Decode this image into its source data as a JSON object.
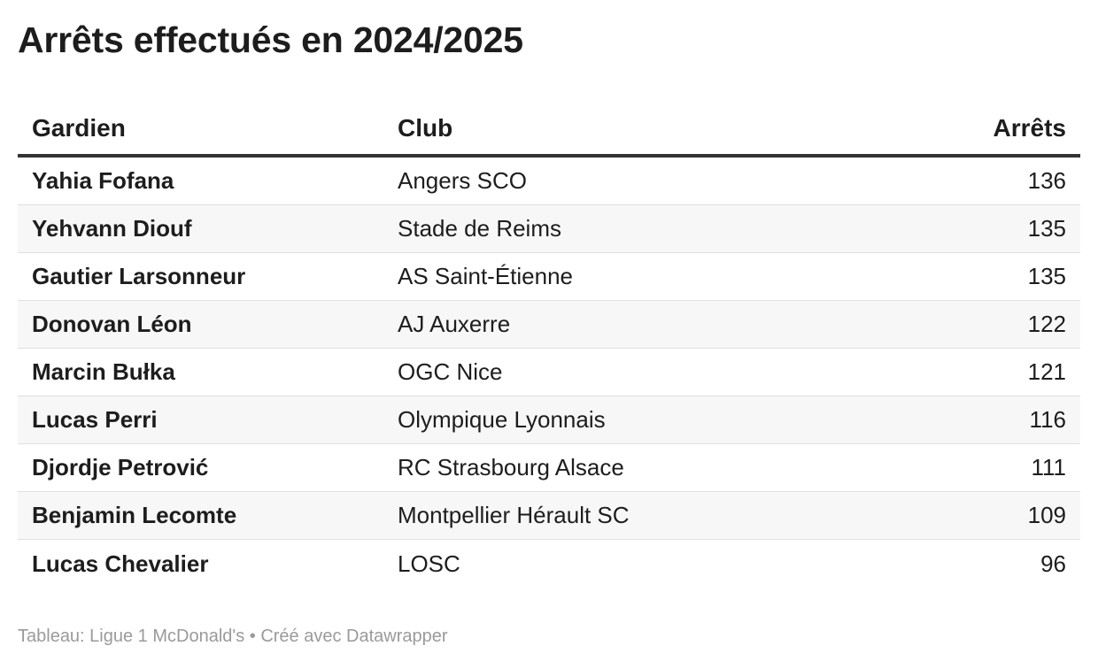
{
  "title": "Arrêts effectués en 2024/2025",
  "footer": "Tableau: Ligue 1 McDonald's • Créé avec Datawrapper",
  "chart_data": {
    "type": "table",
    "title": "Arrêts effectués en 2024/2025",
    "columns": [
      "Gardien",
      "Club",
      "Arrêts"
    ],
    "rows": [
      {
        "gardien": "Yahia Fofana",
        "club": "Angers SCO",
        "arrets": "136"
      },
      {
        "gardien": "Yehvann Diouf",
        "club": "Stade de Reims",
        "arrets": "135"
      },
      {
        "gardien": "Gautier Larsonneur",
        "club": "AS Saint-Étienne",
        "arrets": "135"
      },
      {
        "gardien": "Donovan Léon",
        "club": "AJ Auxerre",
        "arrets": "122"
      },
      {
        "gardien": "Marcin Bułka",
        "club": "OGC Nice",
        "arrets": "121"
      },
      {
        "gardien": "Lucas Perri",
        "club": "Olympique Lyonnais",
        "arrets": "116"
      },
      {
        "gardien": "Djordje Petrović",
        "club": "RC Strasbourg Alsace",
        "arrets": "111"
      },
      {
        "gardien": "Benjamin Lecomte",
        "club": "Montpellier Hérault SC",
        "arrets": "109"
      },
      {
        "gardien": "Lucas Chevalier",
        "club": "LOSC",
        "arrets": "96"
      }
    ]
  }
}
